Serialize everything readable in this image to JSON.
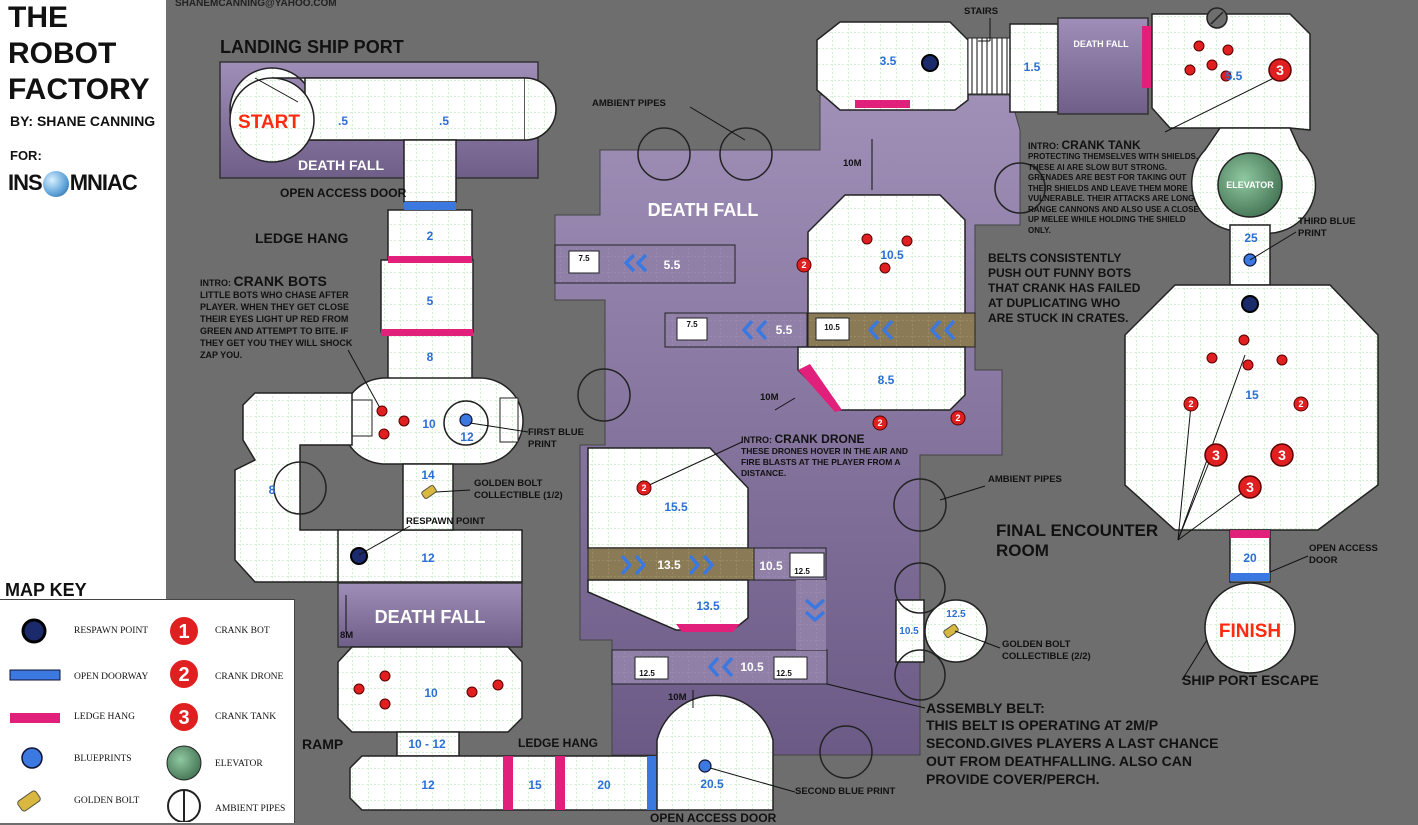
{
  "header": {
    "title_lines": [
      "THE",
      "ROBOT",
      "FACTORY"
    ],
    "author": "BY: SHANE CANNING",
    "for_label": "FOR:",
    "logo": "INSOMNIAC",
    "email": "SHANEMCANNING@YAHOO.COM"
  },
  "rooms": {
    "landing_title": "LANDING SHIP PORT",
    "start": "START",
    "finish": "FINISH",
    "ship_port_escape": "SHIP PORT ESCAPE",
    "final_room_1": "FINAL ENCOUNTER",
    "final_room_2": "ROOM",
    "elevator": "ELEVATOR",
    "death_fall_1": "DEATH FALL",
    "death_fall_2": "DEATH FALL",
    "death_fall_3": "DEATH FALL",
    "death_fall_4": "DEATH FALL"
  },
  "labels": {
    "open_access_door_1": "OPEN ACCESS DOOR",
    "open_access_door_2": "OPEN ACCESS DOOR",
    "open_access_door_3": "OPEN ACCESS",
    "open_access_door_3b": "DOOR",
    "ledge_hang_1": "LEDGE HANG",
    "ledge_hang_2": "LEDGE HANG",
    "stairs": "STAIRS",
    "ambient_pipes_1": "AMBIENT PIPES",
    "ambient_pipes_2": "AMBIENT PIPES",
    "first_blue_print": "FIRST BLUE PRINT",
    "second_blue_print": "SECOND BLUE PRINT",
    "third_blue_print": "THIRD BLUE PRINT",
    "golden_bolt_1": "GOLDEN BOLT COLLECTIBLE (1/2)",
    "golden_bolt_2": "GOLDEN BOLT COLLECTIBLE (2/2)",
    "respawn_point": "RESPAWN POINT",
    "ramp": "RAMP",
    "ten_m": "10M",
    "eight_m": "8M"
  },
  "intros": {
    "crank_bots_title": "CRANK BOTS",
    "crank_bots_text": "LITTLE BOTS WHO CHASE AFTER PLAYER. WHEN THEY GET CLOSE THEIR EYES LIGHT UP RED FROM GREEN AND ATTEMPT TO BITE. IF THEY GET YOU THEY WILL SHOCK ZAP YOU.",
    "crank_drone_title": "CRANK DRONE",
    "crank_drone_text": "THESE DRONES HOVER IN THE AIR AND FIRE BLASTS AT THE PLAYER FROM A DISTANCE.",
    "crank_tank_title": "CRANK TANK",
    "crank_tank_text": "PROTECTING THEMSELVES WITH SHIELDS. THESE AI ARE SLOW BUT STRONG. GRENADES ARE BEST FOR TAKING OUT THEIR SHIELDS AND LEAVE THEM MORE VULNERABLE. THEIR ATTACKS ARE LONG RANGE CANNONS AND ALSO USE A CLOSE UP MELEE WHILE HOLDING THE SHIELD ONLY.",
    "intro_prefix": "INTRO:",
    "belts_text": "BELTS CONSISTENTLY PUSH OUT FUNNY BOTS THAT CRANK HAS FAILED AT DUPLICATING WHO ARE STUCK IN CRATES.",
    "assembly_title": "ASSEMBLY BELT:",
    "assembly_text": "THIS BELT IS OPERATING AT 2M/P SECOND.GIVES PLAYERS A LAST CHANCE OUT FROM DEATHFALLING. ALSO CAN PROVIDE COVER/PERCH."
  },
  "heights": [
    ".5",
    ".5",
    "2",
    "5",
    "8",
    "10",
    "12",
    "14",
    "8",
    "12",
    "10",
    "10 - 12",
    "12",
    "15",
    "20",
    "20.5",
    "13.5",
    "15.5",
    "13.5",
    "10.5",
    "12.5",
    "12.5",
    "10.5",
    "5.5",
    "7.5",
    "5.5",
    "7.5",
    "10.5",
    "10.5",
    "8.5",
    "3.5",
    "1.5",
    "5.5",
    "25",
    "15",
    "20",
    "12.5",
    "10.5"
  ],
  "map_key": {
    "title": "MAP KEY",
    "items": [
      "RESPAWN POINT",
      "OPEN DOORWAY",
      "LEDGE HANG",
      "BLUEPRINTS",
      "GOLDEN BOLT",
      "CRANK BOT",
      "CRANK DRONE",
      "CRANK TANK",
      "ELEVATOR",
      "AMBIENT PIPES"
    ],
    "enemy_numbers": [
      "1",
      "2",
      "3"
    ]
  },
  "colors": {
    "background": "#6e6e6e",
    "purple": "#8f7fa8",
    "grid_floor": "#ffffff",
    "grid_line": "#9ad29a",
    "door_blue": "#3b78e0",
    "ledge_pink": "#e0207a",
    "enemy_red": "#e02020",
    "elevator_green": "#5e9a72",
    "height_text": "#2a6fd6",
    "belt": "#8a7a55"
  }
}
